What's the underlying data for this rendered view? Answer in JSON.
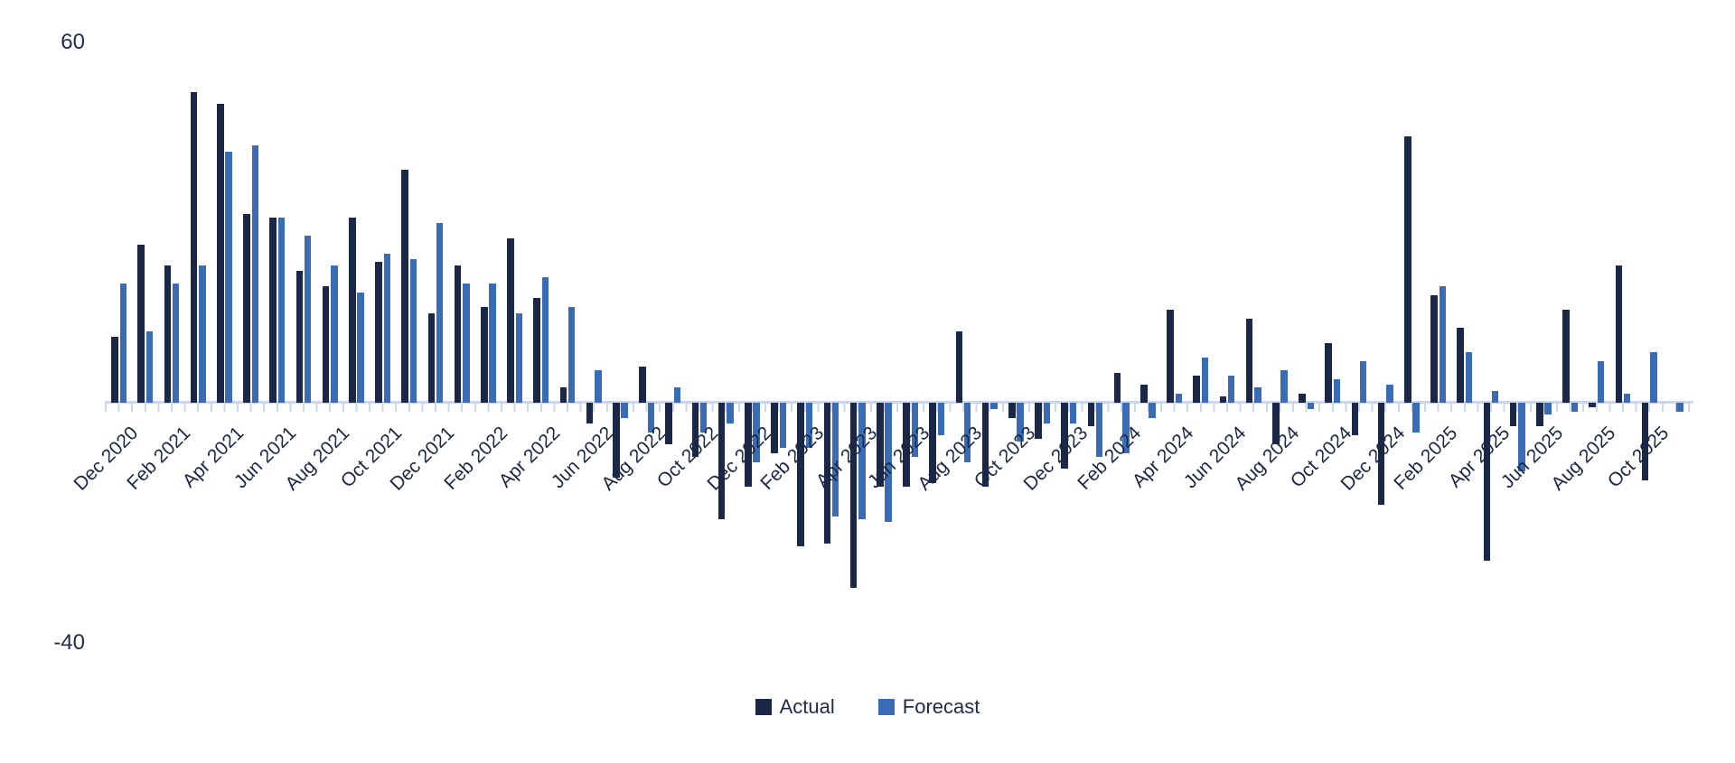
{
  "chart_data": {
    "type": "bar",
    "title": "",
    "xlabel": "",
    "ylabel": "",
    "y_axis": {
      "max": 60,
      "min": -40,
      "max_label": "60",
      "min_label": "-40"
    },
    "grid": false,
    "legend_position": "bottom-center",
    "label_every_n_months": 2,
    "categories": [
      "Dec 2020",
      "Jan 2021",
      "Feb 2021",
      "Mar 2021",
      "Apr 2021",
      "May 2021",
      "Jun 2021",
      "Jul 2021",
      "Aug 2021",
      "Sep 2021",
      "Oct 2021",
      "Nov 2021",
      "Dec 2021",
      "Jan 2022",
      "Feb 2022",
      "Mar 2022",
      "Apr 2022",
      "May 2022",
      "Jun 2022",
      "Jul 2022",
      "Aug 2022",
      "Sep 2022",
      "Oct 2022",
      "Nov 2022",
      "Dec 2022",
      "Jan 2023",
      "Feb 2023",
      "Mar 2023",
      "Apr 2023",
      "May 2023",
      "Jun 2023",
      "Jul 2023",
      "Aug 2023",
      "Sep 2023",
      "Oct 2023",
      "Nov 2023",
      "Dec 2023",
      "Jan 2024",
      "Feb 2024",
      "Mar 2024",
      "Apr 2024",
      "May 2024",
      "Jun 2024",
      "Jul 2024",
      "Aug 2024",
      "Sep 2024",
      "Oct 2024",
      "Nov 2024",
      "Dec 2024",
      "Jan 2025",
      "Feb 2025",
      "Mar 2025",
      "Apr 2025",
      "May 2025",
      "Jun 2025",
      "Jul 2025",
      "Aug 2025",
      "Sep 2025",
      "Oct 2025",
      "Nov 2025"
    ],
    "series": [
      {
        "name": "Actual",
        "color": "#1b2747",
        "values": [
          11,
          26.5,
          23,
          52,
          50,
          31.5,
          31,
          22,
          19.5,
          31,
          23.5,
          39,
          15,
          23,
          16,
          27.5,
          17.5,
          2.5,
          -3.5,
          -12.5,
          6,
          -7,
          -9,
          -19.5,
          -14,
          -8.5,
          -24,
          -23.5,
          -31,
          -14,
          -14,
          -13.5,
          12,
          -14,
          -2.5,
          -6,
          -11,
          -4,
          5,
          3,
          15.5,
          4.5,
          1,
          14,
          -7,
          1.5,
          10,
          -5.5,
          -17,
          44.5,
          18,
          12.5,
          -26.5,
          -4,
          -4,
          15.5,
          -0.7,
          23,
          -13,
          null
        ]
      },
      {
        "name": "Forecast",
        "color": "#3a6cb5",
        "values": [
          20,
          12,
          20,
          23,
          42,
          43,
          31,
          28,
          23,
          18.5,
          25,
          24,
          30,
          20,
          20,
          15,
          21,
          16,
          5.5,
          -2.5,
          -5,
          2.5,
          -5,
          -3.5,
          -10,
          -7.5,
          -7.5,
          -19,
          -19.5,
          -20,
          -9,
          -5.5,
          -10,
          -1,
          -6.5,
          -3.5,
          -3.5,
          -9,
          -8.5,
          -2.5,
          1.5,
          7.5,
          4.5,
          2.5,
          5.5,
          -1,
          4,
          7,
          3,
          -5,
          19.5,
          8.5,
          2,
          -11.5,
          -2,
          -1.5,
          7,
          1.5,
          8.5,
          -1.5
        ]
      }
    ]
  },
  "legend": {
    "items": [
      {
        "label": "Actual",
        "color": "#1b2747"
      },
      {
        "label": "Forecast",
        "color": "#3a6cb5"
      }
    ]
  }
}
